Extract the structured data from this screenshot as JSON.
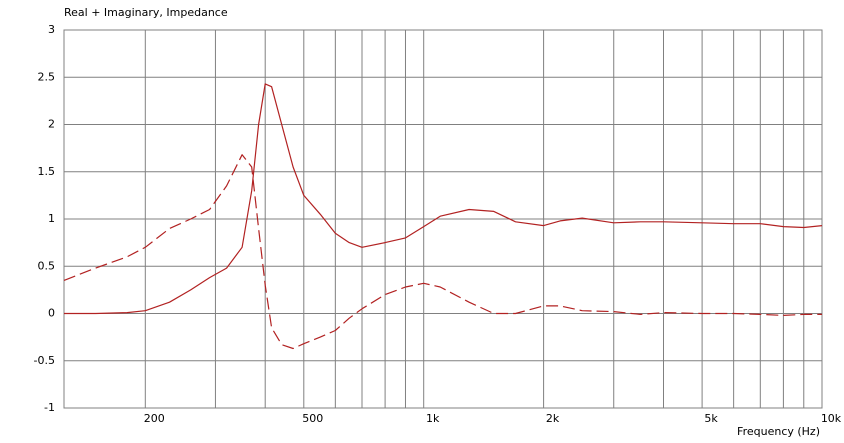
{
  "chart_data": {
    "type": "line",
    "title": "Real + Imaginary, Impedance",
    "x_label": "Frequency  (Hz)",
    "x": [
      125,
      150,
      180,
      200,
      230,
      260,
      290,
      320,
      350,
      370,
      385,
      400,
      415,
      440,
      470,
      500,
      550,
      600,
      650,
      700,
      800,
      900,
      1000,
      1100,
      1300,
      1500,
      1700,
      2000,
      2200,
      2500,
      3000,
      3500,
      4000,
      5000,
      6000,
      7000,
      8000,
      9000,
      10000
    ],
    "series": [
      {
        "color": "#b22222",
        "style": "solid",
        "values": [
          0,
          0,
          0.01,
          0.03,
          0.12,
          0.25,
          0.38,
          0.48,
          0.7,
          1.3,
          2.0,
          2.43,
          2.4,
          2.0,
          1.55,
          1.25,
          1.05,
          0.85,
          0.75,
          0.7,
          0.75,
          0.8,
          0.92,
          1.03,
          1.1,
          1.08,
          0.97,
          0.93,
          0.98,
          1.01,
          0.96,
          0.97,
          0.97,
          0.96,
          0.95,
          0.95,
          0.92,
          0.91,
          0.93
        ]
      },
      {
        "color": "#b22222",
        "style": "dashed",
        "values": [
          0.35,
          0.48,
          0.6,
          0.7,
          0.9,
          1.0,
          1.1,
          1.35,
          1.68,
          1.55,
          0.9,
          0.3,
          -0.15,
          -0.33,
          -0.37,
          -0.32,
          -0.25,
          -0.18,
          -0.05,
          0.05,
          0.2,
          0.28,
          0.32,
          0.28,
          0.12,
          0,
          0,
          0.08,
          0.08,
          0.03,
          0.02,
          -0.01,
          0.01,
          0,
          0,
          -0.01,
          -0.02,
          -0.01,
          -0.01
        ]
      }
    ],
    "x_log": true,
    "xlim": [
      125,
      10000
    ],
    "xticks": [
      200,
      500,
      {
        "value": 1000,
        "label": "1k"
      },
      {
        "value": 2000,
        "label": "2k"
      },
      {
        "value": 5000,
        "label": "5k"
      },
      {
        "value": 10000,
        "label": "10k"
      }
    ],
    "xminorticks": [
      300,
      400,
      600,
      700,
      800,
      900,
      3000,
      4000,
      6000,
      7000,
      8000,
      9000
    ],
    "ylim": [
      -1,
      3
    ],
    "yticks": [
      -1,
      -0.5,
      0,
      0.5,
      1,
      1.5,
      2,
      2.5,
      3
    ],
    "grid": true
  }
}
